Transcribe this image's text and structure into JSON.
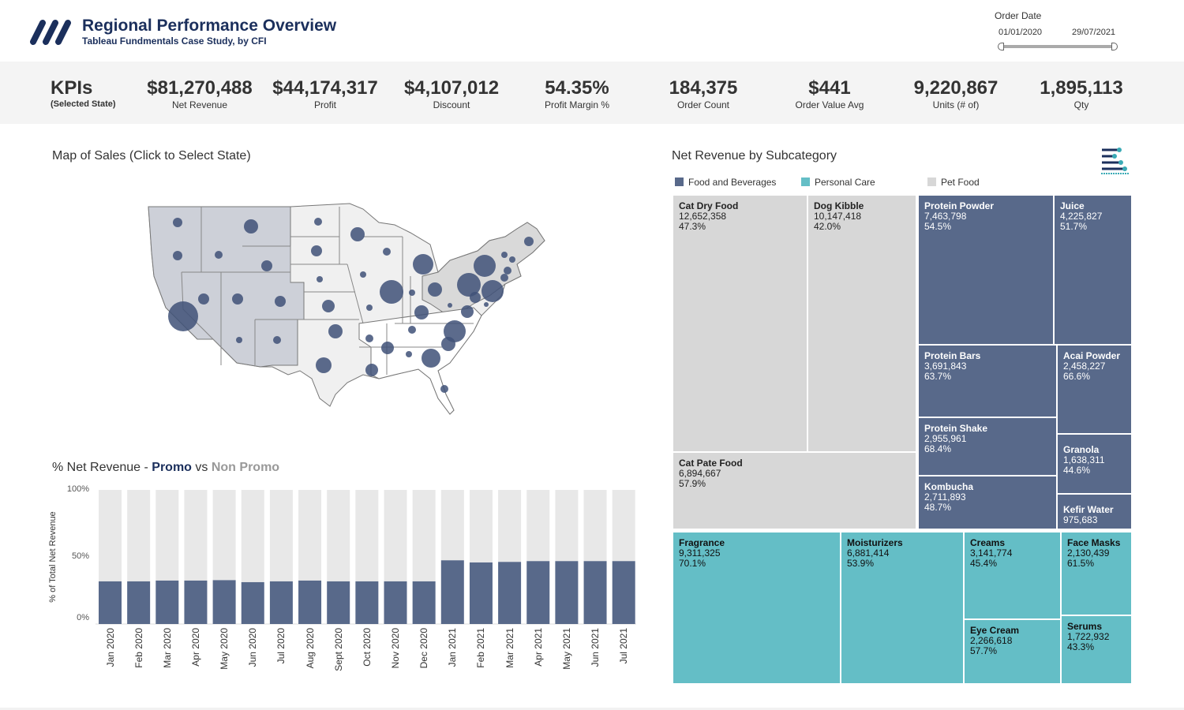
{
  "header": {
    "title": "Regional Performance Overview",
    "subtitle": "Tableau Fundmentals Case Study, by CFI",
    "logo_icon": "cfi-logo-icon"
  },
  "date_filter": {
    "label": "Order Date",
    "start": "01/01/2020",
    "end": "29/07/2021"
  },
  "kpis": {
    "title": "KPIs",
    "subtitle": "(Selected State)",
    "items": [
      {
        "value": "$81,270,488",
        "label": "Net Revenue"
      },
      {
        "value": "$44,174,317",
        "label": "Profit"
      },
      {
        "value": "$4,107,012",
        "label": "Discount"
      },
      {
        "value": "54.35%",
        "label": "Profit Margin %"
      },
      {
        "value": "184,375",
        "label": "Order Count"
      },
      {
        "value": "$441",
        "label": "Order Value Avg"
      },
      {
        "value": "9,220,867",
        "label": "Units (# of)"
      },
      {
        "value": "1,895,113",
        "label": "Qty"
      }
    ]
  },
  "map": {
    "title": "Map of Sales (Click to Select State)",
    "bubble_color": "#3f5178"
  },
  "colors": {
    "food_and_beverages": "#58698a",
    "personal_care": "#64bec6",
    "pet_food": "#d7d7d7",
    "promo": "#58698a",
    "non_promo": "#e8e8e8",
    "title_navy": "#1b2f5c"
  },
  "chart_data": [
    {
      "type": "bar",
      "stacked": true,
      "title_parts": {
        "prefix": "% Net Revenue - ",
        "promo": "Promo",
        "vs": " vs ",
        "non_promo": "Non Promo"
      },
      "ylabel": "% of Total Net Revenue",
      "ylim": [
        0,
        100
      ],
      "yticks": [
        "100%",
        "50%",
        "0%"
      ],
      "grid": false,
      "categories": [
        "Jan 2020",
        "Feb 2020",
        "Mar 2020",
        "Apr 2020",
        "May 2020",
        "Jun 2020",
        "Jul 2020",
        "Aug 2020",
        "Sept 2020",
        "Oct 2020",
        "Nov 2020",
        "Dec 2020",
        "Jan 2021",
        "Feb 2021",
        "Mar 2021",
        "Apr 2021",
        "May 2021",
        "Jun 2021",
        "Jul 2021"
      ],
      "series": [
        {
          "name": "Promo",
          "values": [
            31.8,
            31.8,
            32.4,
            32.4,
            32.7,
            31.2,
            31.8,
            32.4,
            31.8,
            31.8,
            31.8,
            31.8,
            47.5,
            45.9,
            46.3,
            46.9,
            46.9,
            46.9,
            46.9
          ]
        },
        {
          "name": "Non Promo",
          "values": [
            68.2,
            68.2,
            67.6,
            67.6,
            67.3,
            68.8,
            68.2,
            67.6,
            68.2,
            68.2,
            68.2,
            68.2,
            52.5,
            54.1,
            53.7,
            53.1,
            53.1,
            53.1,
            53.1
          ]
        }
      ]
    },
    {
      "type": "treemap",
      "title": "Net Revenue by Subcategory",
      "legend": [
        "Food and Beverages",
        "Personal Care",
        "Pet Food"
      ],
      "items": [
        {
          "name": "Cat Dry Food",
          "value": "12,652,358",
          "pct": "47.3%",
          "category": "Pet Food"
        },
        {
          "name": "Dog Kibble",
          "value": "10,147,418",
          "pct": "42.0%",
          "category": "Pet Food"
        },
        {
          "name": "Cat Pate Food",
          "value": "6,894,667",
          "pct": "57.9%",
          "category": "Pet Food"
        },
        {
          "name": "Protein Powder",
          "value": "7,463,798",
          "pct": "54.5%",
          "category": "Food and Beverages"
        },
        {
          "name": "Juice",
          "value": "4,225,827",
          "pct": "51.7%",
          "category": "Food and Beverages"
        },
        {
          "name": "Protein Bars",
          "value": "3,691,843",
          "pct": "63.7%",
          "category": "Food and Beverages"
        },
        {
          "name": "Protein Shake",
          "value": "2,955,961",
          "pct": "68.4%",
          "category": "Food and Beverages"
        },
        {
          "name": "Kombucha",
          "value": "2,711,893",
          "pct": "48.7%",
          "category": "Food and Beverages"
        },
        {
          "name": "Acai Powder",
          "value": "2,458,227",
          "pct": "66.6%",
          "category": "Food and Beverages"
        },
        {
          "name": "Granola",
          "value": "1,638,311",
          "pct": "44.6%",
          "category": "Food and Beverages"
        },
        {
          "name": "Kefir Water",
          "value": "975,683",
          "pct": "",
          "category": "Food and Beverages"
        },
        {
          "name": "Fragrance",
          "value": "9,311,325",
          "pct": "70.1%",
          "category": "Personal Care"
        },
        {
          "name": "Moisturizers",
          "value": "6,881,414",
          "pct": "53.9%",
          "category": "Personal Care"
        },
        {
          "name": "Creams",
          "value": "3,141,774",
          "pct": "45.4%",
          "category": "Personal Care"
        },
        {
          "name": "Eye Cream",
          "value": "2,266,618",
          "pct": "57.7%",
          "category": "Personal Care"
        },
        {
          "name": "Face Masks",
          "value": "2,130,439",
          "pct": "61.5%",
          "category": "Personal Care"
        },
        {
          "name": "Serums",
          "value": "1,722,932",
          "pct": "43.3%",
          "category": "Personal Care"
        }
      ]
    }
  ],
  "treemap_icon": "bar-chart-toggle-icon"
}
